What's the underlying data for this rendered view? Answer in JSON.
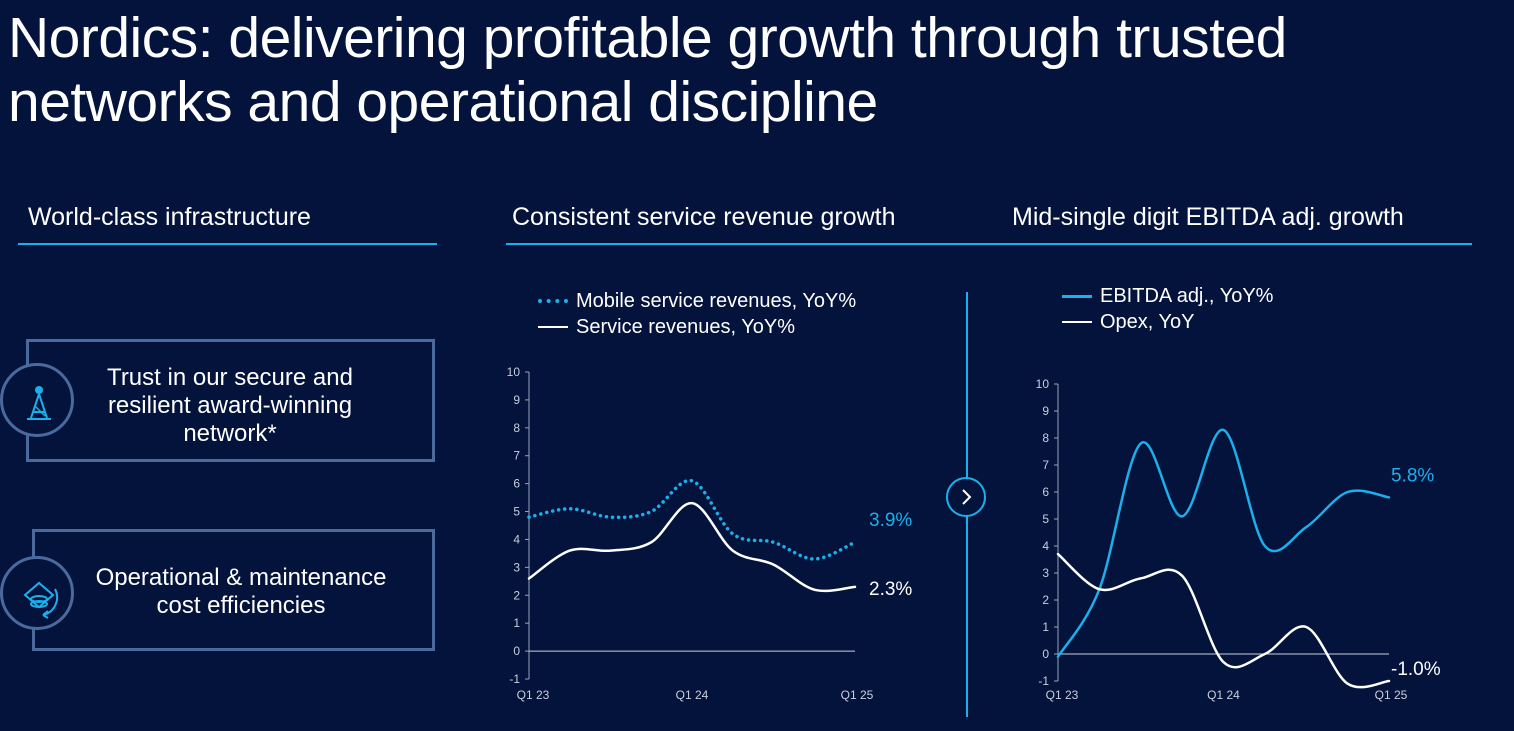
{
  "title": "Nordics: delivering profitable growth through trusted networks and operational discipline",
  "sections": {
    "infrastructure": {
      "heading": "World-class infrastructure"
    },
    "revenue": {
      "heading": "Consistent service revenue growth"
    },
    "ebitda": {
      "heading": "Mid-single digit EBITDA adj. growth"
    }
  },
  "cards": [
    {
      "text": "Trust in our secure and resilient award-winning network*",
      "icon": "network-tower-icon"
    },
    {
      "text": "Operational & maintenance cost efficiencies",
      "icon": "cost-efficiency-icon"
    }
  ],
  "colors": {
    "background": "#03133b",
    "accent": "#1ab0ec",
    "white": "#ffffff",
    "card_border": "#4a6a9e"
  },
  "chart_data": [
    {
      "type": "line",
      "title": "Consistent service revenue growth",
      "ylim": [
        -1,
        10
      ],
      "yticks": [
        "-1",
        "0",
        "1",
        "2",
        "3",
        "4",
        "5",
        "6",
        "7",
        "8",
        "9",
        "10"
      ],
      "xticks": [
        "Q1 23",
        "Q1 24",
        "Q1 25"
      ],
      "series": [
        {
          "name": "Mobile service revenues, YoY%",
          "style": "dotted",
          "color": "#1ab0ec",
          "x": [
            0,
            1,
            2,
            3,
            4,
            5,
            6,
            7,
            8
          ],
          "values": [
            4.8,
            5.1,
            4.8,
            5.0,
            6.1,
            4.2,
            3.9,
            3.3,
            3.9
          ],
          "end_label": "3.9%"
        },
        {
          "name": "Service revenues, YoY%",
          "style": "solid",
          "color": "#ffffff",
          "x": [
            0,
            1,
            2,
            3,
            4,
            5,
            6,
            7,
            8
          ],
          "values": [
            2.6,
            3.6,
            3.6,
            3.9,
            5.3,
            3.6,
            3.1,
            2.2,
            2.3
          ],
          "end_label": "2.3%"
        }
      ]
    },
    {
      "type": "line",
      "title": "Mid-single digit EBITDA adj. growth",
      "ylim": [
        -1,
        10
      ],
      "yticks": [
        "-1",
        "0",
        "1",
        "2",
        "3",
        "4",
        "5",
        "6",
        "7",
        "8",
        "9",
        "10"
      ],
      "xticks": [
        "Q1 23",
        "Q1 24",
        "Q1 25"
      ],
      "series": [
        {
          "name": "EBITDA adj., YoY%",
          "style": "solid",
          "color": "#1ab0ec",
          "x": [
            0,
            1,
            2,
            3,
            4,
            5,
            6,
            7,
            8
          ],
          "values": [
            -0.1,
            2.4,
            7.8,
            5.1,
            8.3,
            4.0,
            4.7,
            6.0,
            5.8
          ],
          "end_label": "5.8%"
        },
        {
          "name": "Opex, YoY",
          "style": "solid",
          "color": "#ffffff",
          "x": [
            0,
            1,
            2,
            3,
            4,
            5,
            6,
            7,
            8
          ],
          "values": [
            3.7,
            2.4,
            2.8,
            2.9,
            -0.3,
            0.0,
            1.0,
            -1.1,
            -1.0
          ],
          "end_label": "-1.0%"
        }
      ]
    }
  ]
}
